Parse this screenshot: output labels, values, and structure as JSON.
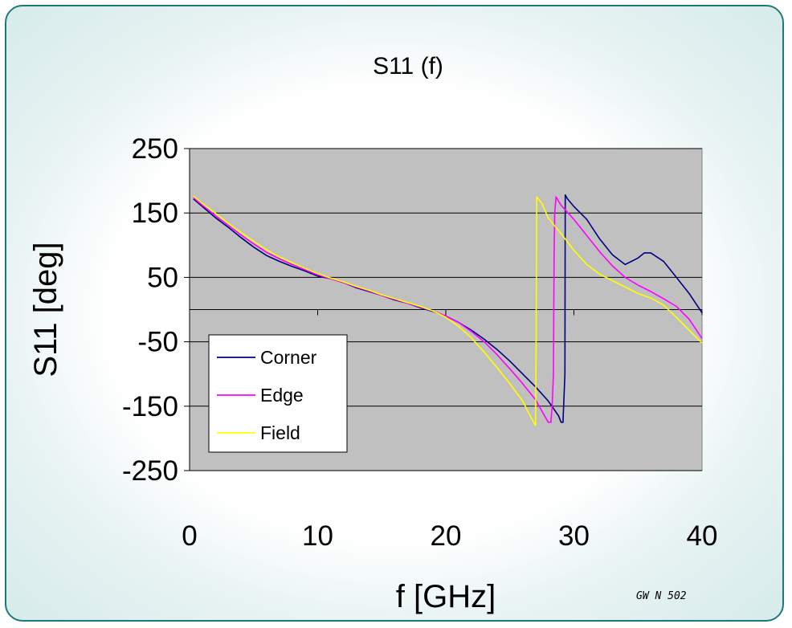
{
  "chart_data": {
    "type": "line",
    "title": "S11 (f)",
    "xlabel": "f [GHz]",
    "ylabel": "S11 [deg]",
    "xlim": [
      0,
      40
    ],
    "ylim": [
      -250,
      250
    ],
    "xticks": [
      0,
      10,
      20,
      30,
      40
    ],
    "yticks": [
      250,
      150,
      50,
      -50,
      -150,
      -250
    ],
    "grid": "horizontal",
    "legend_position": "bottom-left",
    "plot_background": "#c0c0c0",
    "series": [
      {
        "name": "Corner",
        "color": "#000080",
        "points": [
          [
            0.3,
            172
          ],
          [
            1,
            160
          ],
          [
            2,
            143
          ],
          [
            3,
            128
          ],
          [
            4,
            112
          ],
          [
            5,
            97
          ],
          [
            6,
            84
          ],
          [
            7,
            75
          ],
          [
            8,
            67
          ],
          [
            9,
            60
          ],
          [
            10,
            52
          ],
          [
            11,
            48
          ],
          [
            12,
            42
          ],
          [
            13,
            34
          ],
          [
            14,
            28
          ],
          [
            15,
            22
          ],
          [
            16,
            15
          ],
          [
            17,
            10
          ],
          [
            18,
            3
          ],
          [
            19,
            -3
          ],
          [
            20,
            -10
          ],
          [
            21,
            -20
          ],
          [
            22,
            -32
          ],
          [
            23,
            -46
          ],
          [
            24,
            -62
          ],
          [
            25,
            -80
          ],
          [
            26,
            -100
          ],
          [
            27,
            -120
          ],
          [
            28,
            -142
          ],
          [
            28.8,
            -165
          ],
          [
            29,
            -175
          ],
          [
            29.15,
            -175
          ],
          [
            29.3,
            -100
          ],
          [
            29.32,
            178
          ],
          [
            29.5,
            172
          ],
          [
            30,
            160
          ],
          [
            31,
            140
          ],
          [
            32,
            110
          ],
          [
            33,
            85
          ],
          [
            34,
            70
          ],
          [
            35,
            80
          ],
          [
            35.5,
            88
          ],
          [
            36,
            88
          ],
          [
            37,
            75
          ],
          [
            38,
            50
          ],
          [
            39,
            25
          ],
          [
            40,
            -5
          ]
        ]
      },
      {
        "name": "Edge",
        "color": "#ff00ff",
        "points": [
          [
            0.3,
            174
          ],
          [
            1,
            162
          ],
          [
            2,
            146
          ],
          [
            3,
            131
          ],
          [
            4,
            116
          ],
          [
            5,
            102
          ],
          [
            6,
            89
          ],
          [
            7,
            79
          ],
          [
            8,
            70
          ],
          [
            9,
            62
          ],
          [
            10,
            54
          ],
          [
            11,
            48
          ],
          [
            12,
            42
          ],
          [
            13,
            35
          ],
          [
            14,
            29
          ],
          [
            15,
            22
          ],
          [
            16,
            16
          ],
          [
            17,
            10
          ],
          [
            18,
            4
          ],
          [
            19,
            -2
          ],
          [
            20,
            -10
          ],
          [
            21,
            -20
          ],
          [
            22,
            -34
          ],
          [
            23,
            -50
          ],
          [
            24,
            -70
          ],
          [
            25,
            -92
          ],
          [
            26,
            -115
          ],
          [
            27,
            -140
          ],
          [
            27.8,
            -168
          ],
          [
            28,
            -175
          ],
          [
            28.2,
            -175
          ],
          [
            28.3,
            -150
          ],
          [
            28.4,
            -100
          ],
          [
            28.45,
            80
          ],
          [
            28.5,
            150
          ],
          [
            28.6,
            175
          ],
          [
            29,
            162
          ],
          [
            30,
            140
          ],
          [
            31,
            115
          ],
          [
            32,
            90
          ],
          [
            33,
            68
          ],
          [
            34,
            50
          ],
          [
            35,
            38
          ],
          [
            36,
            28
          ],
          [
            37,
            17
          ],
          [
            38,
            5
          ],
          [
            39,
            -15
          ],
          [
            40,
            -45
          ]
        ]
      },
      {
        "name": "Field",
        "color": "#ffff00",
        "points": [
          [
            0.3,
            176
          ],
          [
            1,
            165
          ],
          [
            2,
            150
          ],
          [
            3,
            134
          ],
          [
            4,
            120
          ],
          [
            5,
            106
          ],
          [
            6,
            93
          ],
          [
            7,
            82
          ],
          [
            8,
            73
          ],
          [
            9,
            64
          ],
          [
            10,
            56
          ],
          [
            11,
            49
          ],
          [
            12,
            43
          ],
          [
            13,
            36
          ],
          [
            14,
            30
          ],
          [
            15,
            23
          ],
          [
            16,
            17
          ],
          [
            17,
            11
          ],
          [
            18,
            5
          ],
          [
            19,
            -2
          ],
          [
            20,
            -12
          ],
          [
            21,
            -26
          ],
          [
            22,
            -44
          ],
          [
            23,
            -66
          ],
          [
            24,
            -90
          ],
          [
            25,
            -115
          ],
          [
            26,
            -142
          ],
          [
            26.5,
            -162
          ],
          [
            27,
            -180
          ],
          [
            27.05,
            -60
          ],
          [
            27.1,
            175
          ],
          [
            27.5,
            165
          ],
          [
            28,
            142
          ],
          [
            29,
            118
          ],
          [
            30,
            92
          ],
          [
            31,
            70
          ],
          [
            32,
            55
          ],
          [
            33,
            45
          ],
          [
            34,
            35
          ],
          [
            35,
            25
          ],
          [
            36,
            18
          ],
          [
            37,
            7
          ],
          [
            38,
            -12
          ],
          [
            39,
            -32
          ],
          [
            40,
            -52
          ]
        ]
      }
    ]
  },
  "watermark": "GW N 502"
}
